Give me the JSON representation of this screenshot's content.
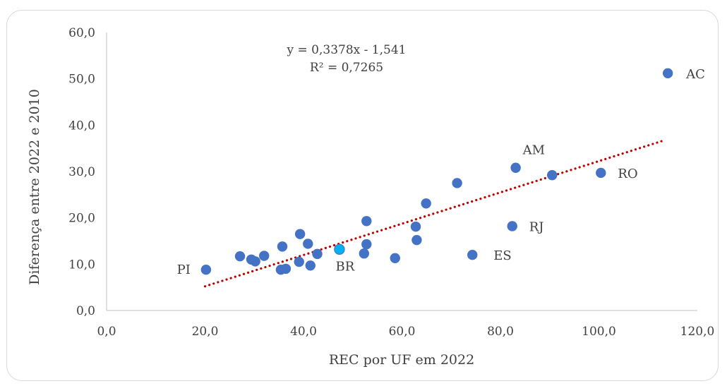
{
  "chart_data": {
    "type": "scatter",
    "xlabel": "REC por UF em 2022",
    "ylabel": "Diferença entre 2022 e 2010",
    "xlim": [
      0,
      120
    ],
    "ylim": [
      0,
      60
    ],
    "x_ticks": [
      "0,0",
      "20,0",
      "40,0",
      "60,0",
      "80,0",
      "100,0",
      "120,0"
    ],
    "y_ticks": [
      "0,0",
      "10,0",
      "20,0",
      "30,0",
      "40,0",
      "50,0",
      "60,0"
    ],
    "grid": false,
    "legend": "none",
    "trendline": {
      "type": "linear",
      "slope": 0.3378,
      "intercept": -1.541,
      "x_range": [
        20,
        113.5
      ],
      "color": "#c00000",
      "equation_label": "y = 0,3378x - 1,541",
      "r2_label": "R² = 0,7265"
    },
    "colors": {
      "points": "#4472c4",
      "highlight": "#00b0f0"
    },
    "points": [
      {
        "x": 20.2,
        "y": 8.8,
        "label": "PI"
      },
      {
        "x": 27.1,
        "y": 11.7,
        "label": ""
      },
      {
        "x": 29.4,
        "y": 11.0,
        "label": ""
      },
      {
        "x": 30.2,
        "y": 10.6,
        "label": ""
      },
      {
        "x": 32.0,
        "y": 11.8,
        "label": ""
      },
      {
        "x": 35.7,
        "y": 13.8,
        "label": ""
      },
      {
        "x": 35.4,
        "y": 8.8,
        "label": ""
      },
      {
        "x": 36.4,
        "y": 9.0,
        "label": ""
      },
      {
        "x": 39.1,
        "y": 10.5,
        "label": ""
      },
      {
        "x": 39.3,
        "y": 16.5,
        "label": ""
      },
      {
        "x": 40.9,
        "y": 14.4,
        "label": ""
      },
      {
        "x": 41.4,
        "y": 9.7,
        "label": ""
      },
      {
        "x": 42.8,
        "y": 12.2,
        "label": ""
      },
      {
        "x": 47.3,
        "y": 13.2,
        "label": "BR",
        "highlight": true
      },
      {
        "x": 52.3,
        "y": 12.3,
        "label": ""
      },
      {
        "x": 52.8,
        "y": 14.3,
        "label": ""
      },
      {
        "x": 52.8,
        "y": 19.3,
        "label": ""
      },
      {
        "x": 58.6,
        "y": 11.3,
        "label": ""
      },
      {
        "x": 62.8,
        "y": 18.1,
        "label": ""
      },
      {
        "x": 63.0,
        "y": 15.2,
        "label": ""
      },
      {
        "x": 64.9,
        "y": 23.1,
        "label": ""
      },
      {
        "x": 71.2,
        "y": 27.5,
        "label": ""
      },
      {
        "x": 74.3,
        "y": 12.0,
        "label": "ES"
      },
      {
        "x": 82.4,
        "y": 18.2,
        "label": "RJ"
      },
      {
        "x": 83.1,
        "y": 30.8,
        "label": "AM"
      },
      {
        "x": 90.5,
        "y": 29.2,
        "label": ""
      },
      {
        "x": 100.4,
        "y": 29.7,
        "label": "RO"
      },
      {
        "x": 114.0,
        "y": 51.2,
        "label": "AC"
      }
    ]
  }
}
